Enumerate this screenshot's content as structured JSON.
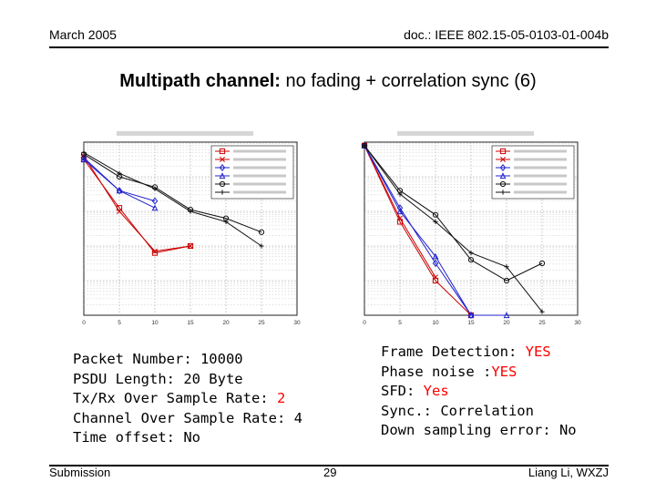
{
  "header": {
    "date": "March 2005",
    "doc": "doc.: IEEE 802.15-05-0103-01-004b"
  },
  "title": {
    "bold": "Multipath channel:",
    "rest": "no fading + correlation sync (6)"
  },
  "figures": [
    {
      "chart_data": {
        "type": "line",
        "title": "",
        "xlabel": "",
        "ylabel": "",
        "x": [
          0,
          5,
          10,
          15,
          20,
          25,
          30
        ],
        "xticks": [
          "0",
          "5",
          "10",
          "15",
          "20",
          "25",
          "30"
        ],
        "xlim": [
          0,
          30
        ],
        "ylim": [
          -5,
          0
        ],
        "yscale": "log",
        "grid": true,
        "legend_position": "top-right",
        "legend_rows": 6,
        "series": [
          {
            "color": "#cc0000",
            "marker": "square",
            "values": [
              -0.5,
              -1.9,
              -3.2,
              -3.0,
              null,
              null,
              null
            ]
          },
          {
            "color": "#cc0000",
            "marker": "x",
            "values": [
              -0.4,
              -2.0,
              -3.15,
              -3.0,
              null,
              null,
              null
            ]
          },
          {
            "color": "#2222cc",
            "marker": "diamond",
            "values": [
              -0.45,
              -1.4,
              -1.7,
              null,
              null,
              null,
              null
            ]
          },
          {
            "color": "#2222cc",
            "marker": "triangle",
            "values": [
              -0.5,
              -1.4,
              -1.9,
              null,
              null,
              null,
              null
            ]
          },
          {
            "color": "#111111",
            "marker": "circle",
            "values": [
              -0.35,
              -1.0,
              -1.3,
              -1.95,
              -2.2,
              -2.6,
              null
            ]
          },
          {
            "color": "#111111",
            "marker": "plus",
            "values": [
              -0.3,
              -0.9,
              -1.35,
              -2.0,
              -2.3,
              -3.0,
              null
            ]
          }
        ]
      }
    },
    {
      "chart_data": {
        "type": "line",
        "title": "",
        "xlabel": "",
        "ylabel": "",
        "x": [
          0,
          5,
          10,
          15,
          20,
          25,
          30
        ],
        "xticks": [
          "0",
          "5",
          "10",
          "15",
          "20",
          "25",
          "30"
        ],
        "xlim": [
          0,
          30
        ],
        "ylim": [
          -5,
          0
        ],
        "yscale": "log",
        "grid": true,
        "legend_position": "top-right",
        "legend_rows": 6,
        "series": [
          {
            "color": "#cc0000",
            "marker": "square",
            "values": [
              -0.1,
              -2.3,
              -4.0,
              -5.0,
              null,
              null,
              null
            ]
          },
          {
            "color": "#cc0000",
            "marker": "x",
            "values": [
              -0.1,
              -2.2,
              -3.9,
              null,
              null,
              null,
              null
            ]
          },
          {
            "color": "#2222cc",
            "marker": "diamond",
            "values": [
              -0.1,
              -1.9,
              -3.5,
              -5.0,
              null,
              null,
              null
            ]
          },
          {
            "color": "#2222cc",
            "marker": "triangle",
            "values": [
              -0.1,
              -2.0,
              -3.3,
              -5.0,
              -5.0,
              null,
              null
            ]
          },
          {
            "color": "#111111",
            "marker": "circle",
            "values": [
              -0.1,
              -1.4,
              -2.1,
              -3.4,
              -4.0,
              -3.5,
              null
            ]
          },
          {
            "color": "#111111",
            "marker": "plus",
            "values": [
              -0.1,
              -1.5,
              -2.3,
              -3.2,
              -3.6,
              -4.9,
              null
            ]
          }
        ]
      }
    }
  ],
  "left_block": {
    "packet": "Packet Number: 10000",
    "psdu": "PSDU Length: 20 Byte",
    "txrx_label": "Tx/Rx Over Sample Rate: ",
    "txrx_value": "2",
    "channel": "Channel Over Sample Rate: 4",
    "time_offset": "Time offset: No"
  },
  "right_block": {
    "frame_label": "Frame Detection: ",
    "frame_value": "YES",
    "phase_label": "Phase noise :",
    "phase_value": "YES",
    "sfd_label": "SFD: ",
    "sfd_value": "Yes",
    "sync": "Sync.: Correlation",
    "down": "Down sampling error: No"
  },
  "footer": {
    "left": "Submission",
    "page": "29",
    "right": "Liang Li, WXZJ"
  }
}
